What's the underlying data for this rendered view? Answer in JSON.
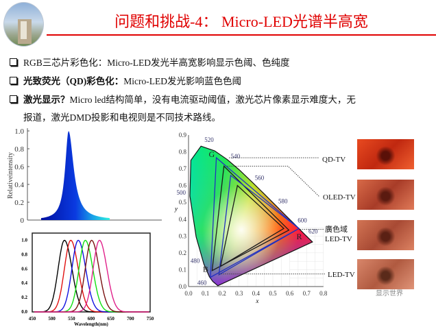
{
  "slide": {
    "title": "问题和挑战-4：  Micro-LED光谱半高宽",
    "accent_color": "#e00000",
    "bullets": [
      {
        "bold": "",
        "text": "RGB三芯片彩色化：Micro-LED发光半高宽影响显示色阈、色纯度"
      },
      {
        "bold": "光致荧光（QD)彩色化：",
        "text": "Micro-LED发光影响蓝色色阈"
      },
      {
        "bold": "激光显示？",
        "text": "Micro led结构简单，没有电流驱动阈值，激光芯片像素显示难度大，无"
      },
      {
        "bold": "",
        "text": "报道，激光DMD投影和电视则是不同技术路线。"
      }
    ]
  },
  "chart_data": [
    {
      "type": "area",
      "ylabel": "Relativeintensity",
      "yticks": [
        "1.0",
        "0.8",
        "0.6",
        "0.4",
        "0.2",
        "0"
      ],
      "ylim": [
        0,
        1
      ],
      "series": [
        {
          "peak": 1.0,
          "color": "#0a2ad0"
        }
      ]
    },
    {
      "type": "line",
      "xlabel": "Wavelength(nm)",
      "xticks": [
        "450",
        "500",
        "550",
        "600",
        "650",
        "700",
        "750"
      ],
      "yticks": [
        "1.0",
        "0.8",
        "0.6",
        "0.4",
        "0.2",
        "0.0"
      ],
      "xlim": [
        450,
        750
      ],
      "ylim": [
        0,
        1.1
      ],
      "series": [
        {
          "peak_nm": 532,
          "color": "#000000"
        },
        {
          "peak_nm": 548,
          "color": "#e01010"
        },
        {
          "peak_nm": 567,
          "color": "#1010e0"
        },
        {
          "peak_nm": 585,
          "color": "#10e010"
        },
        {
          "peak_nm": 601,
          "color": "#7a1010"
        },
        {
          "peak_nm": 621,
          "color": "#e0208a"
        }
      ]
    },
    {
      "type": "scatter",
      "xlabel": "x",
      "ylabel": "y",
      "xticks": [
        "0.0",
        "0.1",
        "0.2",
        "0.3",
        "0.4",
        "0.5",
        "0.6",
        "0.7",
        "0.8"
      ],
      "yticks": [
        "0.0",
        "0.1",
        "0.2",
        "0.3",
        "0.4",
        "0.5",
        "0.6",
        "0.7",
        "0.8",
        "0.9"
      ],
      "xlim": [
        0,
        0.8
      ],
      "ylim": [
        0,
        0.9
      ],
      "wavelength_labels": [
        "460",
        "480",
        "500",
        "520",
        "540",
        "560",
        "580",
        "600",
        "620"
      ],
      "vertex_labels": [
        "G",
        "R",
        "B"
      ],
      "gamuts": [
        {
          "name": "QD-TV",
          "color": "#2030c0",
          "points": [
            [
              0.165,
              0.765
            ],
            [
              0.655,
              0.345
            ],
            [
              0.13,
              0.055
            ]
          ]
        },
        {
          "name": "OLED-TV",
          "color": "#1a1a1a",
          "points": [
            [
              0.21,
              0.715
            ],
            [
              0.595,
              0.335
            ],
            [
              0.14,
              0.095
            ]
          ]
        },
        {
          "name": "廣色域 LED-TV",
          "color": "#2030c0",
          "points": [
            [
              0.25,
              0.66
            ],
            [
              0.655,
              0.345
            ],
            [
              0.18,
              0.07
            ]
          ]
        },
        {
          "name": "LED-TV",
          "color": "#1a1a1a",
          "points": [
            [
              0.29,
              0.6
            ],
            [
              0.565,
              0.345
            ],
            [
              0.19,
              0.12
            ]
          ]
        }
      ],
      "labels": [
        "QD-TV",
        "OLED-TV",
        "廣色域",
        "LED-TV",
        "LED-TV"
      ]
    }
  ],
  "watermark": "显示世界"
}
